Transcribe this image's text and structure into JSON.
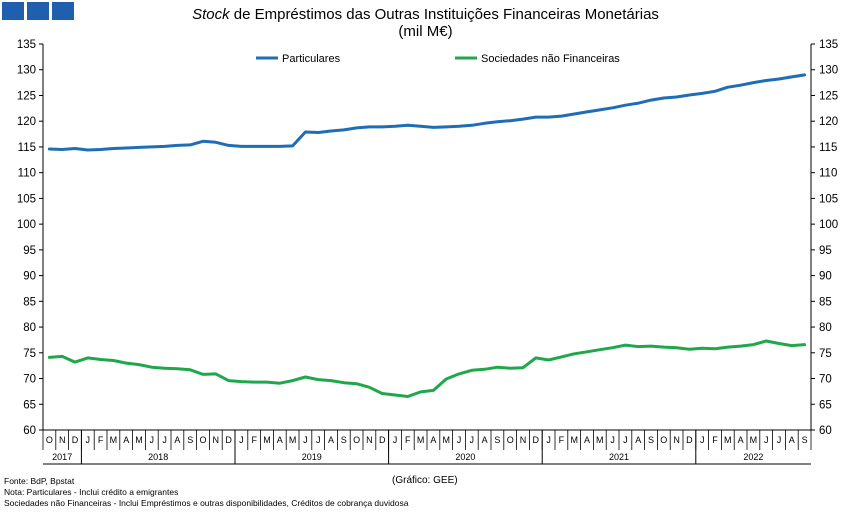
{
  "header": {
    "title_italic": "Stock",
    "title_rest": " de Empréstimos das Outras Instituições Financeiras Monetárias",
    "subtitle": "(mil M€)"
  },
  "chart_data": {
    "type": "line",
    "title": "Stock de Empréstimos das Outras Instituições Financeiras Monetárias",
    "subtitle": "(mil M€)",
    "ylim": [
      60,
      135
    ],
    "yticks": [
      60,
      65,
      70,
      75,
      80,
      85,
      90,
      95,
      100,
      105,
      110,
      115,
      120,
      125,
      130,
      135
    ],
    "y_axis_both_sides": true,
    "grid": false,
    "legend_position": "top",
    "month_labels": [
      "O",
      "N",
      "D",
      "J",
      "F",
      "M",
      "A",
      "M",
      "J",
      "J",
      "A",
      "S",
      "O",
      "N",
      "D",
      "J",
      "F",
      "M",
      "A",
      "M",
      "J",
      "J",
      "A",
      "S",
      "O",
      "N",
      "D",
      "J",
      "F",
      "M",
      "A",
      "M",
      "J",
      "J",
      "A",
      "S",
      "O",
      "N",
      "D",
      "J",
      "F",
      "M",
      "A",
      "M",
      "J",
      "J",
      "A",
      "S",
      "O",
      "N",
      "D",
      "J",
      "F",
      "M",
      "A",
      "M",
      "J",
      "J",
      "A",
      "S"
    ],
    "years": [
      {
        "label": "2017",
        "months": 3
      },
      {
        "label": "2018",
        "months": 12
      },
      {
        "label": "2019",
        "months": 12
      },
      {
        "label": "2020",
        "months": 12
      },
      {
        "label": "2021",
        "months": 12
      },
      {
        "label": "2022",
        "months": 9
      }
    ],
    "series": [
      {
        "name": "Particulares",
        "color": "#1f6db5",
        "values": [
          114.6,
          114.5,
          114.7,
          114.4,
          114.5,
          114.7,
          114.8,
          114.9,
          115.0,
          115.1,
          115.3,
          115.4,
          116.1,
          115.9,
          115.3,
          115.1,
          115.1,
          115.1,
          115.1,
          115.2,
          117.9,
          117.8,
          118.1,
          118.3,
          118.7,
          118.9,
          118.9,
          119.0,
          119.2,
          119.0,
          118.8,
          118.9,
          119.0,
          119.2,
          119.6,
          119.9,
          120.1,
          120.4,
          120.8,
          120.8,
          121.0,
          121.4,
          121.8,
          122.2,
          122.6,
          123.1,
          123.5,
          124.1,
          124.5,
          124.7,
          125.1,
          125.4,
          125.8,
          126.6,
          127.0,
          127.5,
          127.9,
          128.2,
          128.6,
          129.0
        ]
      },
      {
        "name": "Sociedades não Financeiras",
        "color": "#1fa84a",
        "values": [
          74.1,
          74.3,
          73.2,
          74.0,
          73.7,
          73.5,
          73.0,
          72.7,
          72.2,
          72.0,
          71.9,
          71.7,
          70.8,
          70.9,
          69.6,
          69.4,
          69.3,
          69.3,
          69.1,
          69.6,
          70.3,
          69.8,
          69.6,
          69.2,
          69.0,
          68.3,
          67.1,
          66.8,
          66.5,
          67.4,
          67.7,
          69.9,
          70.9,
          71.6,
          71.8,
          72.2,
          72.0,
          72.1,
          74.0,
          73.6,
          74.2,
          74.8,
          75.2,
          75.6,
          76.0,
          76.5,
          76.2,
          76.3,
          76.1,
          76.0,
          75.7,
          75.9,
          75.8,
          76.1,
          76.3,
          76.6,
          77.3,
          76.8,
          76.4,
          76.6
        ]
      }
    ]
  },
  "footer": {
    "source": "Fonte: BdP, Bpstat",
    "note": "Nota: Particulares - Inclui crédito a emigrantes",
    "note2": "Sociedades não Financeiras - Inclui Empréstimos e outras disponibilidades, Créditos de cobrança duvidosa",
    "credit": "(Gráfico: GEE)"
  }
}
